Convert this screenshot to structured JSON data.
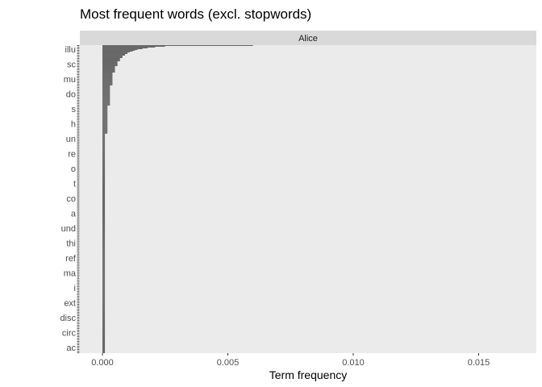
{
  "chart_data": {
    "type": "bar",
    "orientation": "horizontal",
    "title": "Most frequent words (excl. stopwords)",
    "facet": "Alice",
    "xlabel": "Term frequency",
    "ylabel": "",
    "xlim": [
      -0.0009,
      0.0173
    ],
    "xticks": [
      0.0,
      0.005,
      0.01,
      0.015
    ],
    "xtick_labels": [
      "0.000",
      "0.005",
      "0.010",
      "0.015"
    ],
    "grid": false,
    "legend": "none",
    "bar_color": "#595959",
    "panel_color": "#ebebeb",
    "visible_word_labels": [
      "illu",
      "sc",
      "mu",
      "do",
      "s",
      "h",
      "un",
      "re",
      "o",
      "t",
      "co",
      "a",
      "und",
      "thi",
      "ref",
      "ma",
      "i",
      "ext",
      "disc",
      "circ",
      "ac"
    ],
    "values": [
      0.006,
      0.0025,
      0.0021,
      0.0018,
      0.0016,
      0.0014,
      0.0013,
      0.0012,
      0.0011,
      0.001,
      0.001,
      0.0009,
      0.0009,
      0.0008,
      0.0008,
      0.0008,
      0.0007,
      0.0007,
      0.0007,
      0.0007,
      0.0006,
      0.0006,
      0.0006,
      0.0006,
      0.0006,
      0.0006,
      0.0005,
      0.0005,
      0.0005,
      0.0005,
      0.0005,
      0.0005,
      0.0005,
      0.0005,
      0.0004,
      0.0004,
      0.0004,
      0.0004,
      0.0004,
      0.0004,
      0.0004,
      0.0004,
      0.0004,
      0.0004,
      0.0004,
      0.0004,
      0.0004,
      0.0004,
      0.0004,
      0.0004,
      0.0003,
      0.0003,
      0.0003,
      0.0003,
      0.0003,
      0.0003,
      0.0003,
      0.0003,
      0.0003,
      0.0003,
      0.0003,
      0.0003,
      0.0003,
      0.0003,
      0.0003,
      0.0003,
      0.0003,
      0.0003,
      0.0003,
      0.0003,
      0.0003,
      0.0003,
      0.0003,
      0.0003,
      0.0003,
      0.0002,
      0.0002,
      0.0002,
      0.0002,
      0.0002,
      0.0002,
      0.0002,
      0.0002,
      0.0002,
      0.0002,
      0.0002,
      0.0002,
      0.0002,
      0.0002,
      0.0002,
      0.0002,
      0.0002,
      0.0002,
      0.0002,
      0.0002,
      0.0002,
      0.0002,
      0.0002,
      0.0002,
      0.0002,
      0.0002,
      0.0002,
      0.0002,
      0.0002,
      0.0002,
      0.0002,
      0.0002,
      0.0002,
      0.0002,
      0.0002,
      0.0001,
      0.0001,
      0.0001,
      0.0001,
      0.0001,
      0.0001,
      0.0001,
      0.0001,
      0.0001,
      0.0001,
      0.0001,
      0.0001,
      0.0001,
      0.0001,
      0.0001,
      0.0001,
      0.0001,
      0.0001,
      0.0001,
      0.0001,
      0.0001,
      0.0001,
      0.0001,
      0.0001,
      0.0001,
      0.0001,
      0.0001,
      0.0001,
      0.0001,
      0.0001,
      0.0001,
      0.0001,
      0.0001,
      0.0001,
      0.0001,
      0.0001,
      0.0001,
      0.0001,
      0.0001,
      0.0001,
      0.0001,
      0.0001,
      0.0001,
      0.0001,
      0.0001,
      0.0001,
      0.0001,
      0.0001,
      0.0001,
      0.0001,
      0.0001,
      0.0001,
      0.0001,
      0.0001,
      0.0001,
      0.0001,
      0.0001,
      0.0001,
      0.0001,
      0.0001,
      0.0001,
      0.0001,
      0.0001,
      0.0001,
      0.0001,
      0.0001,
      0.0001,
      0.0001,
      0.0001,
      0.0001,
      0.0001,
      0.0001,
      0.0001,
      0.0001,
      0.0001,
      0.0001,
      0.0001,
      0.0001,
      0.0001,
      0.0001,
      0.0001,
      0.0001,
      0.0001,
      0.0001,
      0.0001,
      0.0001,
      0.0001,
      0.0001,
      0.0001,
      0.0001,
      0.0001,
      0.0001,
      0.0001,
      0.0001,
      0.0001,
      0.0001,
      0.0001,
      0.0001,
      0.0001,
      0.0001,
      0.0001,
      0.0001,
      0.0001,
      0.0001,
      0.0001,
      0.0001,
      0.0001,
      0.0001,
      0.0001,
      0.0001,
      0.0001,
      0.0001,
      0.0001,
      0.0001,
      0.0001,
      0.0001,
      0.0001,
      0.0001,
      0.0001,
      0.0001,
      0.0001,
      0.0001,
      0.0001,
      0.0001,
      0.0001,
      0.0001,
      0.0001,
      0.0001,
      0.0001,
      0.0001,
      0.0001,
      0.0001,
      0.0001,
      0.0001,
      0.0001,
      0.0001,
      0.0001,
      0.0001,
      0.0001,
      0.0001,
      0.0001,
      0.0001,
      0.0001,
      0.0001,
      0.0001,
      0.0001,
      0.0001,
      0.0001,
      0.0001,
      0.0001,
      0.0001,
      0.0001,
      0.0001,
      0.0001,
      0.0001,
      0.0001,
      0.0001,
      0.0001,
      0.0001,
      0.0001,
      0.0001,
      0.0001,
      0.0001,
      0.0001,
      0.0001,
      0.0001,
      0.0001,
      0.0001,
      0.0001,
      0.0001,
      0.0001,
      0.0001,
      0.0001,
      0.0001,
      0.0001,
      0.0001,
      0.0001,
      0.0001,
      0.0001,
      0.0001,
      0.0001,
      0.0001,
      0.0001,
      0.0001,
      0.0001,
      0.0001,
      0.0001,
      0.0001,
      0.0001,
      0.0001,
      0.0001,
      0.0001,
      0.0001,
      0.0001,
      0.0001,
      0.0001,
      0.0001,
      0.0001,
      0.0001,
      0.0001,
      0.0001,
      0.0001,
      0.0001,
      0.0001,
      0.0001,
      0.0001,
      0.0001,
      0.0001,
      0.0001,
      0.0001,
      0.0001,
      0.0001,
      0.0001,
      0.0001,
      0.0001,
      0.0001,
      0.0001,
      0.0001,
      0.0001,
      0.0001,
      0.0001,
      0.0001,
      0.0001,
      0.0001,
      0.0001,
      0.0001,
      0.0001,
      0.0001,
      0.0001,
      0.0001,
      0.0001,
      0.0001,
      0.0001,
      0.0001,
      0.0001,
      0.0001,
      0.0001,
      0.0001,
      0.0001,
      0.0001,
      0.0001,
      0.0001,
      0.0001,
      0.0001,
      0.0001,
      0.0001,
      0.0001,
      0.0001,
      0.0001,
      0.0001,
      0.0001,
      0.0001,
      0.0001,
      0.0001,
      0.0001,
      0.0001,
      0.0001,
      0.0001,
      0.0001,
      0.0001,
      0.0001,
      0.0001,
      0.0001,
      0.0001,
      0.0001,
      0.0001,
      0.0001,
      0.0001,
      0.0001,
      0.0001,
      0.0001,
      0.0001,
      0.0001
    ]
  }
}
